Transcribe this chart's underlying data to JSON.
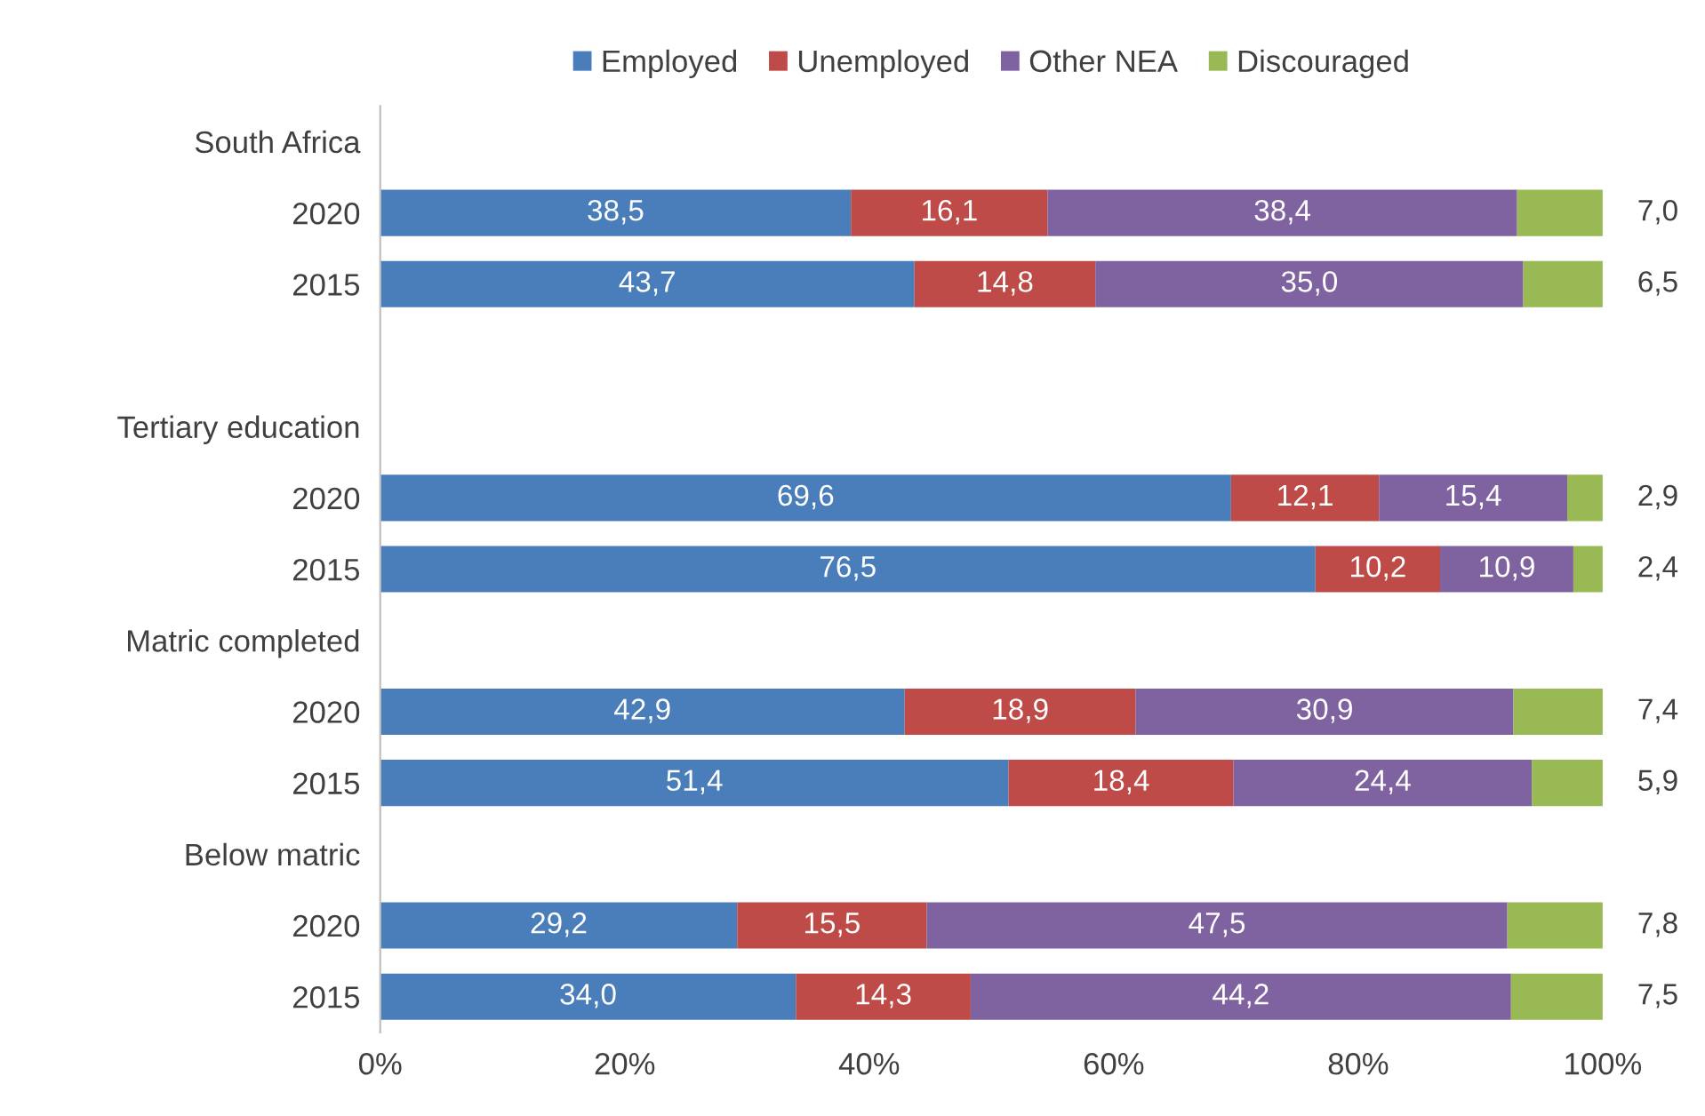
{
  "chart_data": {
    "type": "bar",
    "orientation": "horizontal",
    "stacked": true,
    "categories": [
      "South Africa",
      "2020",
      "2015",
      null,
      "Tertiary education",
      "2020",
      "2015",
      "Matric completed",
      "2020",
      "2015",
      "Below matric",
      "2020",
      "2015"
    ],
    "series": [
      {
        "name": "Employed",
        "color": "#4a7ebb",
        "values": [
          null,
          38.5,
          43.7,
          null,
          null,
          69.6,
          76.5,
          null,
          42.9,
          51.4,
          null,
          29.2,
          34.0
        ],
        "value_labels": [
          null,
          "38,5",
          "43,7",
          null,
          null,
          "69,6",
          "76,5",
          null,
          "42,9",
          "51,4",
          null,
          "29,2",
          "34,0"
        ]
      },
      {
        "name": "Unemployed",
        "color": "#be4b48",
        "values": [
          null,
          16.1,
          14.8,
          null,
          null,
          12.1,
          10.2,
          null,
          18.9,
          18.4,
          null,
          15.5,
          14.3
        ],
        "value_labels": [
          null,
          "16,1",
          "14,8",
          null,
          null,
          "12,1",
          "10,2",
          null,
          "18,9",
          "18,4",
          null,
          "15,5",
          "14,3"
        ]
      },
      {
        "name": "Other NEA",
        "color": "#7f63a1",
        "values": [
          null,
          38.4,
          35.0,
          null,
          null,
          15.4,
          10.9,
          null,
          30.9,
          24.4,
          null,
          47.5,
          44.2
        ],
        "value_labels": [
          null,
          "38,4",
          "35,0",
          null,
          null,
          "15,4",
          "10,9",
          null,
          "30,9",
          "24,4",
          null,
          "47,5",
          "44,2"
        ]
      },
      {
        "name": "Discouraged",
        "color": "#98b954",
        "values": [
          null,
          7.0,
          6.5,
          null,
          null,
          2.9,
          2.4,
          null,
          7.4,
          5.9,
          null,
          7.8,
          7.5
        ],
        "value_labels": [
          null,
          "7,0",
          "6,5",
          null,
          null,
          "2,9",
          "2,4",
          null,
          "7,4",
          "5,9",
          null,
          "7,8",
          "7,5"
        ]
      }
    ],
    "xlim": [
      0,
      100
    ],
    "xticks": [
      {
        "value": 0,
        "label": "0%"
      },
      {
        "value": 20,
        "label": "20%"
      },
      {
        "value": 40,
        "label": "40%"
      },
      {
        "value": 60,
        "label": "60%"
      },
      {
        "value": 80,
        "label": "80%"
      },
      {
        "value": 100,
        "label": "100%"
      }
    ],
    "grid": false,
    "legend": "top"
  }
}
